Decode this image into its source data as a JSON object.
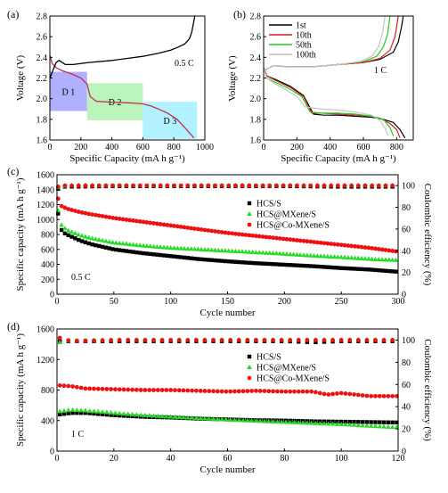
{
  "chart_data": [
    {
      "panel": "(a)",
      "type": "line",
      "xlabel": "Specific Capacity (mA h g⁻¹)",
      "ylabel": "Voltage (V)",
      "xlim": [
        0,
        1000
      ],
      "ylim": [
        1.6,
        2.8
      ],
      "xticks": [
        0,
        200,
        400,
        600,
        800,
        1000
      ],
      "yticks": [
        1.6,
        1.8,
        2.0,
        2.2,
        2.4,
        2.6,
        2.8
      ],
      "annotation": "0.5 C",
      "regions": [
        {
          "label": "D 1",
          "x": [
            0,
            240
          ],
          "y": [
            1.88,
            2.26
          ],
          "color": "#7b7bff"
        },
        {
          "label": "D 2",
          "x": [
            240,
            600
          ],
          "y": [
            1.79,
            2.15
          ],
          "color": "#90ee90"
        },
        {
          "label": "D 3",
          "x": [
            600,
            950
          ],
          "y": [
            1.61,
            1.97
          ],
          "color": "#7fe8ff"
        }
      ],
      "series": [
        {
          "role": "discharge",
          "color": "#c0304a",
          "x": [
            0,
            15,
            40,
            80,
            140,
            200,
            240,
            260,
            300,
            400,
            500,
            560,
            600,
            650,
            700,
            760,
            820,
            870,
            900,
            930
          ],
          "y": [
            2.42,
            2.34,
            2.3,
            2.27,
            2.24,
            2.2,
            2.14,
            2.02,
            1.975,
            1.965,
            1.96,
            1.955,
            1.95,
            1.93,
            1.9,
            1.86,
            1.8,
            1.72,
            1.67,
            1.62
          ]
        },
        {
          "role": "charge",
          "color": "#000000",
          "x": [
            0,
            40,
            60,
            80,
            100,
            150,
            250,
            400,
            500,
            600,
            700,
            780,
            830,
            870,
            900,
            915,
            925,
            935
          ],
          "y": [
            2.2,
            2.35,
            2.37,
            2.35,
            2.33,
            2.33,
            2.35,
            2.37,
            2.39,
            2.41,
            2.44,
            2.47,
            2.5,
            2.53,
            2.58,
            2.64,
            2.72,
            2.8
          ]
        }
      ]
    },
    {
      "panel": "(b)",
      "type": "line",
      "xlabel": "Specific Capacity (mA h g⁻¹)",
      "ylabel": "",
      "xlim": [
        0,
        900
      ],
      "ylim": [
        1.6,
        2.8
      ],
      "xticks": [
        0,
        200,
        400,
        600,
        800
      ],
      "yticks": [
        1.6,
        1.8,
        2.0,
        2.2,
        2.4,
        2.6,
        2.8
      ],
      "annotation": "1 C",
      "series": [
        {
          "name": "1st",
          "color": "#000000",
          "discharge": {
            "x": [
              0,
              20,
              80,
              160,
              240,
              300,
              360,
              450,
              550,
              650,
              720,
              780,
              820,
              850
            ],
            "y": [
              2.3,
              2.22,
              2.18,
              2.12,
              2.03,
              1.85,
              1.84,
              1.84,
              1.83,
              1.82,
              1.8,
              1.77,
              1.7,
              1.62
            ]
          },
          "charge": {
            "x": [
              0,
              60,
              140,
              300,
              450,
              600,
              700,
              780,
              810,
              830,
              840
            ],
            "y": [
              2.27,
              2.32,
              2.31,
              2.31,
              2.33,
              2.35,
              2.38,
              2.45,
              2.55,
              2.7,
              2.8
            ]
          }
        },
        {
          "name": "10th",
          "color": "#d62020",
          "discharge": {
            "x": [
              0,
              20,
              80,
              160,
              240,
              290,
              350,
              450,
              550,
              650,
              700,
              760,
              800,
              820
            ],
            "y": [
              2.3,
              2.22,
              2.17,
              2.11,
              2.02,
              1.86,
              1.86,
              1.85,
              1.84,
              1.83,
              1.81,
              1.76,
              1.7,
              1.62
            ]
          },
          "charge": {
            "x": [
              0,
              60,
              140,
              300,
              450,
              600,
              700,
              760,
              790,
              810
            ],
            "y": [
              2.27,
              2.32,
              2.31,
              2.31,
              2.33,
              2.35,
              2.39,
              2.47,
              2.6,
              2.8
            ]
          }
        },
        {
          "name": "50th",
          "color": "#22cc22",
          "discharge": {
            "x": [
              0,
              20,
              80,
              150,
              230,
              280,
              350,
              450,
              550,
              650,
              720,
              760,
              780
            ],
            "y": [
              2.3,
              2.2,
              2.15,
              2.1,
              2.02,
              1.87,
              1.86,
              1.86,
              1.85,
              1.83,
              1.8,
              1.72,
              1.64
            ]
          },
          "charge": {
            "x": [
              0,
              60,
              140,
              300,
              450,
              600,
              680,
              720,
              745,
              760
            ],
            "y": [
              2.27,
              2.32,
              2.31,
              2.31,
              2.33,
              2.36,
              2.41,
              2.5,
              2.62,
              2.8
            ]
          }
        },
        {
          "name": "100th",
          "color": "#c4c4c4",
          "discharge": {
            "x": [
              0,
              20,
              70,
              130,
              200,
              250,
              350,
              450,
              550,
              650,
              700,
              730,
              750
            ],
            "y": [
              2.3,
              2.2,
              2.14,
              2.09,
              2.02,
              1.92,
              1.9,
              1.89,
              1.87,
              1.84,
              1.79,
              1.71,
              1.64
            ]
          },
          "charge": {
            "x": [
              0,
              60,
              140,
              300,
              450,
              580,
              650,
              690,
              715,
              730
            ],
            "y": [
              2.27,
              2.32,
              2.31,
              2.31,
              2.33,
              2.36,
              2.41,
              2.5,
              2.63,
              2.8
            ]
          }
        }
      ]
    },
    {
      "panel": "(c)",
      "type": "scatter",
      "xlabel": "Cycle number",
      "ylabel": "Specific capacity (mA h g⁻¹)",
      "y2label": "Coulombic efficiency (%)",
      "xlim": [
        0,
        300
      ],
      "ylim": [
        0,
        1600
      ],
      "y2lim": [
        0,
        110
      ],
      "xticks": [
        0,
        50,
        100,
        150,
        200,
        250,
        300
      ],
      "yticks": [
        0,
        200,
        400,
        600,
        800,
        1000,
        1200,
        1400,
        1600
      ],
      "y2ticks": [
        0,
        20,
        40,
        60,
        80,
        100
      ],
      "annotation": "0.5 C",
      "legend": "right",
      "series": [
        {
          "name": "HCS/S",
          "marker": "square",
          "color": "#000000",
          "capacity": {
            "x": [
              1,
              2,
              5,
              10,
              20,
              30,
              50,
              75,
              100,
              125,
              150,
              175,
              200,
              225,
              250,
              275,
              300
            ],
            "y": [
              1080,
              920,
              830,
              790,
              720,
              670,
              600,
              550,
              510,
              470,
              440,
              415,
              395,
              375,
              350,
              330,
              300
            ]
          },
          "efficiency": {
            "x": [
              1,
              3,
              10,
              50,
              100,
              150,
              200,
              250,
              300
            ],
            "y": [
              97,
              99,
              99,
              99.5,
              99.5,
              99.5,
              99.5,
              99,
              99
            ]
          }
        },
        {
          "name": "HCS@MXene/S",
          "marker": "triangle",
          "color": "#22dd22",
          "capacity": {
            "x": [
              1,
              2,
              5,
              10,
              20,
              30,
              50,
              75,
              100,
              125,
              150,
              175,
              200,
              225,
              250,
              275,
              300
            ],
            "y": [
              1120,
              980,
              900,
              850,
              790,
              750,
              690,
              650,
              620,
              600,
              580,
              560,
              540,
              515,
              495,
              470,
              455
            ]
          },
          "efficiency": {
            "x": [
              1,
              3,
              10,
              50,
              100,
              150,
              200,
              250,
              300
            ],
            "y": [
              98,
              99,
              100,
              100,
              100,
              100,
              100,
              100,
              100
            ]
          }
        },
        {
          "name": "HCS@Co-MXene/S",
          "marker": "circle",
          "color": "#ee1111",
          "capacity": {
            "x": [
              1,
              2,
              5,
              10,
              20,
              30,
              50,
              75,
              100,
              125,
              150,
              175,
              200,
              225,
              250,
              275,
              300
            ],
            "y": [
              1280,
              1200,
              1170,
              1140,
              1100,
              1070,
              1020,
              970,
              920,
              870,
              820,
              780,
              740,
              700,
              660,
              620,
              570
            ]
          },
          "efficiency": {
            "x": [
              1,
              3,
              10,
              50,
              100,
              150,
              200,
              250,
              300
            ],
            "y": [
              99,
              100,
              100,
              100,
              100,
              100,
              100,
              100,
              100
            ]
          }
        }
      ]
    },
    {
      "panel": "(d)",
      "type": "scatter",
      "xlabel": "Cycle number",
      "ylabel": "Specific capacity (mA h g⁻¹)",
      "y2label": "Coulombic efficiency (%)",
      "xlim": [
        0,
        120
      ],
      "ylim": [
        0,
        1600
      ],
      "y2lim": [
        0,
        110
      ],
      "xticks": [
        0,
        20,
        40,
        60,
        80,
        100,
        120
      ],
      "yticks": [
        0,
        400,
        800,
        1200,
        1600
      ],
      "y2ticks": [
        0,
        20,
        40,
        60,
        80,
        100
      ],
      "annotation": "1 C",
      "legend": "right",
      "series": [
        {
          "name": "HCS/S",
          "marker": "square",
          "color": "#000000",
          "capacity": {
            "x": [
              1,
              5,
              10,
              20,
              30,
              40,
              50,
              60,
              70,
              80,
              90,
              100,
              110,
              120
            ],
            "y": [
              480,
              500,
              500,
              470,
              450,
              440,
              425,
              415,
              405,
              400,
              390,
              385,
              380,
              375
            ]
          },
          "efficiency": {
            "x": [
              1,
              5,
              20,
              40,
              60,
              80,
              90,
              100,
              120
            ],
            "y": [
              99,
              99,
              99,
              99,
              99,
              99,
              98,
              99,
              99
            ]
          }
        },
        {
          "name": "HCS@MXene/S",
          "marker": "triangle",
          "color": "#22dd22",
          "capacity": {
            "x": [
              1,
              5,
              10,
              20,
              30,
              40,
              50,
              60,
              70,
              80,
              90,
              100,
              110,
              120
            ],
            "y": [
              520,
              540,
              530,
              500,
              470,
              450,
              430,
              410,
              395,
              380,
              365,
              350,
              330,
              310
            ]
          },
          "efficiency": {
            "x": [
              1,
              5,
              20,
              40,
              60,
              80,
              100,
              120
            ],
            "y": [
              98,
              100,
              100,
              100,
              100,
              100,
              100,
              100
            ]
          }
        },
        {
          "name": "HCS@Co-MXene/S",
          "marker": "circle",
          "color": "#ee1111",
          "capacity": {
            "x": [
              1,
              5,
              10,
              20,
              30,
              40,
              50,
              60,
              70,
              80,
              90,
              95,
              100,
              110,
              120
            ],
            "y": [
              860,
              850,
              820,
              810,
              800,
              800,
              790,
              780,
              790,
              780,
              780,
              740,
              760,
              720,
              720
            ]
          },
          "efficiency": {
            "x": [
              1,
              5,
              20,
              40,
              60,
              80,
              100,
              120
            ],
            "y": [
              102,
              99,
              100,
              100,
              100,
              100,
              100,
              100
            ]
          }
        }
      ]
    }
  ]
}
